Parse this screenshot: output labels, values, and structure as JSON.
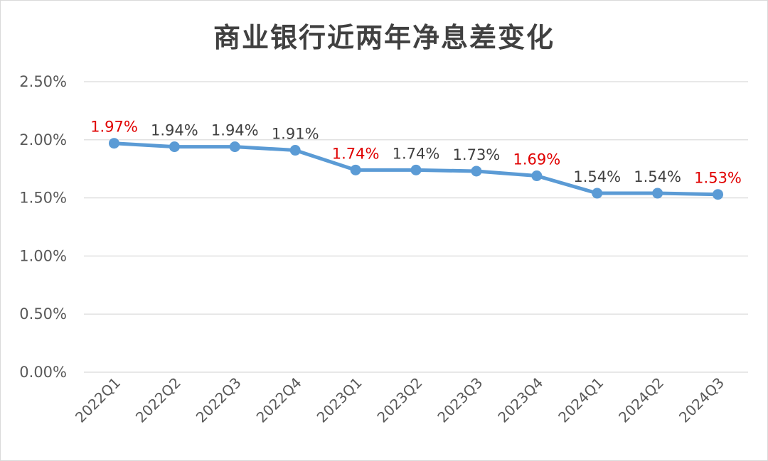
{
  "chart_data": {
    "type": "line",
    "title": "商业银行近两年净息差变化",
    "categories": [
      "2022Q1",
      "2022Q2",
      "2022Q3",
      "2022Q4",
      "2023Q1",
      "2023Q2",
      "2023Q3",
      "2023Q4",
      "2024Q1",
      "2024Q2",
      "2024Q3"
    ],
    "values": [
      1.97,
      1.94,
      1.94,
      1.91,
      1.74,
      1.74,
      1.73,
      1.69,
      1.54,
      1.54,
      1.53
    ],
    "data_labels": [
      "1.97%",
      "1.94%",
      "1.94%",
      "1.91%",
      "1.74%",
      "1.74%",
      "1.73%",
      "1.69%",
      "1.54%",
      "1.54%",
      "1.53%"
    ],
    "highlighted": [
      true,
      false,
      false,
      false,
      true,
      false,
      false,
      true,
      false,
      false,
      true
    ],
    "y_ticks": [
      0,
      0.5,
      1.0,
      1.5,
      2.0,
      2.5
    ],
    "y_tick_labels": [
      "0.00%",
      "0.50%",
      "1.00%",
      "1.50%",
      "2.00%",
      "2.50%"
    ],
    "ylim": [
      0,
      2.5
    ],
    "grid": true,
    "legend": "none",
    "colors": {
      "line": "#5b9bd5",
      "grid": "#d9d9d9",
      "label_normal": "#404040",
      "label_highlight": "#e00000"
    }
  }
}
